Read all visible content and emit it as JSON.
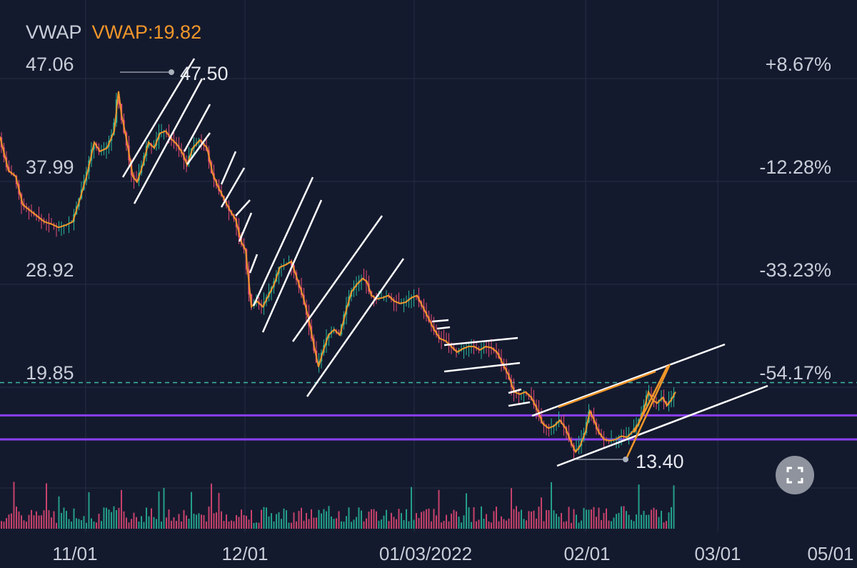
{
  "indicator": {
    "name": "VWAP",
    "value_label": "VWAP:19.82"
  },
  "chart_data": {
    "type": "candlestick",
    "price_axis": [
      {
        "price": 47.06,
        "label": "47.06",
        "pct": "+8.67%"
      },
      {
        "price": 37.99,
        "label": "37.99",
        "pct": "-12.28%"
      },
      {
        "price": 28.92,
        "label": "28.92",
        "pct": "-33.23%"
      },
      {
        "price": 19.85,
        "label": "19.85",
        "pct": "-54.17%"
      }
    ],
    "x_ticks": [
      "11/01",
      "12/01",
      "01/03/2022",
      "02/01",
      "03/01",
      "05/01"
    ],
    "vwap": 19.82,
    "price_path": [
      [
        0,
        41.5
      ],
      [
        12,
        38.5
      ],
      [
        22,
        38
      ],
      [
        32,
        35.5
      ],
      [
        42,
        35
      ],
      [
        52,
        34.5
      ],
      [
        62,
        34
      ],
      [
        72,
        33.8
      ],
      [
        82,
        33.5
      ],
      [
        92,
        33.7
      ],
      [
        102,
        34
      ],
      [
        112,
        36
      ],
      [
        122,
        38.2
      ],
      [
        132,
        41
      ],
      [
        140,
        40.2
      ],
      [
        150,
        40.5
      ],
      [
        160,
        42
      ],
      [
        166,
        45.5
      ],
      [
        170,
        43.5
      ],
      [
        178,
        41
      ],
      [
        186,
        38
      ],
      [
        192,
        37.5
      ],
      [
        200,
        39
      ],
      [
        208,
        41
      ],
      [
        216,
        40.5
      ],
      [
        224,
        41.8
      ],
      [
        232,
        42
      ],
      [
        240,
        41.3
      ],
      [
        248,
        40.8
      ],
      [
        256,
        40
      ],
      [
        262,
        39
      ],
      [
        270,
        40.5
      ],
      [
        280,
        41.2
      ],
      [
        290,
        40.5
      ],
      [
        298,
        38.2
      ],
      [
        306,
        37
      ],
      [
        314,
        36
      ],
      [
        322,
        35
      ],
      [
        330,
        34.2
      ],
      [
        338,
        32.2
      ],
      [
        344,
        31.5
      ],
      [
        352,
        26.5
      ],
      [
        360,
        27
      ],
      [
        368,
        26.5
      ],
      [
        376,
        27.5
      ],
      [
        384,
        28.5
      ],
      [
        392,
        30
      ],
      [
        400,
        30.2
      ],
      [
        408,
        30.5
      ],
      [
        416,
        29
      ],
      [
        424,
        27.5
      ],
      [
        432,
        25.5
      ],
      [
        440,
        23
      ],
      [
        446,
        21.2
      ],
      [
        452,
        22.5
      ],
      [
        460,
        24
      ],
      [
        468,
        24.5
      ],
      [
        476,
        24
      ],
      [
        484,
        26
      ],
      [
        492,
        27.8
      ],
      [
        500,
        28.5
      ],
      [
        508,
        29
      ],
      [
        514,
        28.7
      ],
      [
        520,
        27.5
      ],
      [
        528,
        27.2
      ],
      [
        536,
        27.3
      ],
      [
        544,
        27.5
      ],
      [
        552,
        27
      ],
      [
        560,
        26.8
      ],
      [
        568,
        26.9
      ],
      [
        576,
        27.3
      ],
      [
        584,
        27.5
      ],
      [
        592,
        26.5
      ],
      [
        600,
        25.5
      ],
      [
        608,
        24.5
      ],
      [
        616,
        23.7
      ],
      [
        624,
        23.5
      ],
      [
        632,
        23
      ],
      [
        640,
        22.5
      ],
      [
        648,
        22.8
      ],
      [
        656,
        23
      ],
      [
        664,
        23
      ],
      [
        672,
        22.7
      ],
      [
        680,
        23
      ],
      [
        688,
        22.9
      ],
      [
        696,
        22.5
      ],
      [
        704,
        21.5
      ],
      [
        712,
        20.5
      ],
      [
        720,
        19
      ],
      [
        728,
        18.8
      ],
      [
        736,
        19
      ],
      [
        744,
        18.5
      ],
      [
        752,
        17.5
      ],
      [
        760,
        16.2
      ],
      [
        768,
        15.8
      ],
      [
        776,
        16
      ],
      [
        784,
        16.5
      ],
      [
        792,
        15.8
      ],
      [
        800,
        14.5
      ],
      [
        806,
        13.7
      ],
      [
        812,
        14.2
      ],
      [
        820,
        15.5
      ],
      [
        826,
        17.3
      ],
      [
        832,
        16.5
      ],
      [
        838,
        15.5
      ],
      [
        846,
        14.8
      ],
      [
        854,
        14.7
      ],
      [
        862,
        14.8
      ],
      [
        870,
        15.1
      ],
      [
        878,
        15
      ],
      [
        886,
        15.5
      ],
      [
        894,
        16.2
      ],
      [
        902,
        17.5
      ],
      [
        908,
        19
      ],
      [
        914,
        18.3
      ],
      [
        920,
        18
      ],
      [
        928,
        18.5
      ],
      [
        934,
        17.8
      ],
      [
        940,
        18.3
      ],
      [
        946,
        19
      ]
    ],
    "annotations": [
      {
        "text": "47.50",
        "x": 168,
        "price": 47.5
      },
      {
        "text": "13.40",
        "x": 806,
        "price": 13.4
      }
    ],
    "horizontal_levels": [
      {
        "price": 16.93,
        "color": "#8a3ff2"
      },
      {
        "price": 14.81,
        "color": "#8a3ff2"
      }
    ]
  }
}
